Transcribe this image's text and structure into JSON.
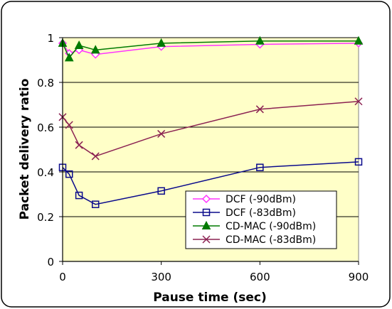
{
  "chart_data": {
    "type": "line",
    "title": "",
    "xlabel": "Pause time (sec)",
    "ylabel": "Packet delivery ratio",
    "xlim": [
      0,
      900
    ],
    "ylim": [
      0,
      1
    ],
    "xticks": [
      0,
      300,
      600,
      900
    ],
    "yticks": [
      0,
      0.2,
      0.4,
      0.6,
      0.8,
      1
    ],
    "x_tick_labels": [
      "0",
      "300",
      "600",
      "900"
    ],
    "y_tick_labels": [
      "0",
      "0.2",
      "0.4",
      "0.6",
      "0.8",
      "1"
    ],
    "grid": "horizontal",
    "legend_position": "bottom-right",
    "plot_background": "#ffffc8",
    "series": [
      {
        "name": "DCF (-90dBm)",
        "color": "#ff33ff",
        "marker": "diamond",
        "x": [
          0,
          20,
          50,
          100,
          300,
          600,
          900
        ],
        "y": [
          0.975,
          0.93,
          0.945,
          0.925,
          0.96,
          0.97,
          0.975
        ]
      },
      {
        "name": "DCF (-83dBm)",
        "color": "#0a0a8c",
        "marker": "square",
        "x": [
          0,
          20,
          50,
          100,
          300,
          600,
          900
        ],
        "y": [
          0.42,
          0.39,
          0.295,
          0.255,
          0.315,
          0.42,
          0.445
        ]
      },
      {
        "name": "CD-MAC (-90dBm)",
        "color": "#007a00",
        "marker": "triangle",
        "x": [
          0,
          20,
          50,
          100,
          300,
          600,
          900
        ],
        "y": [
          0.975,
          0.91,
          0.965,
          0.945,
          0.975,
          0.985,
          0.985
        ]
      },
      {
        "name": "CD-MAC (-83dBm)",
        "color": "#8b2252",
        "marker": "x",
        "x": [
          0,
          20,
          50,
          100,
          300,
          600,
          900
        ],
        "y": [
          0.645,
          0.61,
          0.52,
          0.47,
          0.57,
          0.68,
          0.715
        ]
      }
    ]
  }
}
